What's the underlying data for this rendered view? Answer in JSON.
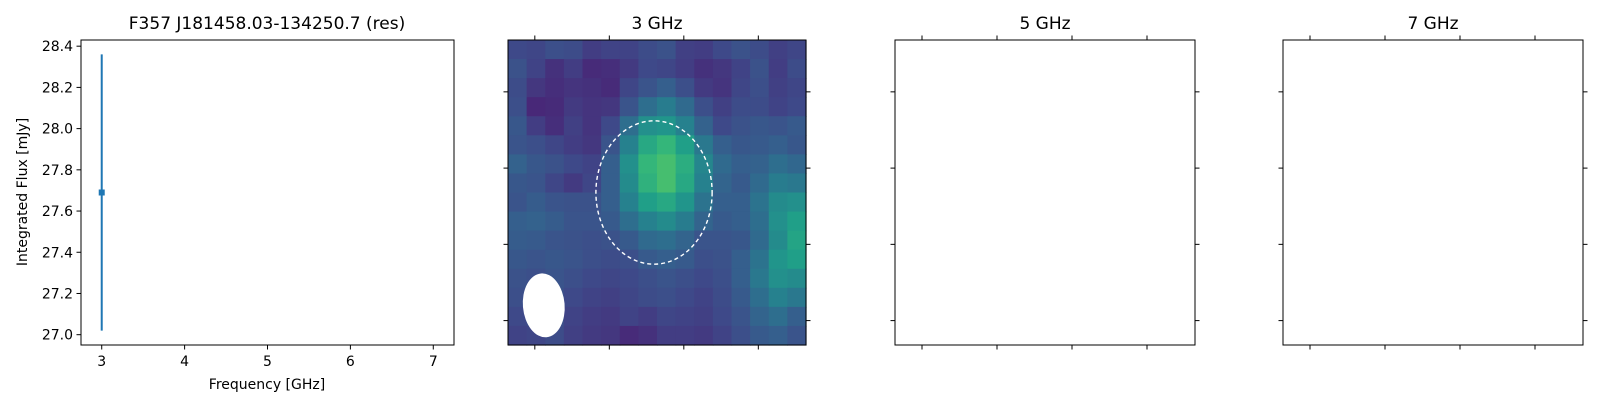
{
  "chart_data": [
    {
      "type": "scatter",
      "title": "F357 J181458.03-134250.7 (res)",
      "xlabel": "Frequency [GHz]",
      "ylabel": "Integrated Flux [mJy]",
      "xlim": [
        2.75,
        7.25
      ],
      "ylim": [
        26.95,
        28.43
      ],
      "x_ticks": [
        3,
        4,
        5,
        6,
        7
      ],
      "y_ticks": [
        27.0,
        27.2,
        27.4,
        27.6,
        27.8,
        28.0,
        28.2,
        28.4
      ],
      "series": [
        {
          "x": [
            3
          ],
          "y": [
            27.69
          ],
          "yerr": [
            [
              0.67
            ],
            [
              0.67
            ]
          ],
          "color": "#1f77b4"
        }
      ]
    },
    {
      "type": "heatmap",
      "title": "3 GHz",
      "colormap": "viridis",
      "rows": 16,
      "cols": 16,
      "values": [
        [
          0.22,
          0.21,
          0.24,
          0.23,
          0.18,
          0.2,
          0.2,
          0.23,
          0.25,
          0.19,
          0.18,
          0.22,
          0.25,
          0.23,
          0.19,
          0.21
        ],
        [
          0.25,
          0.2,
          0.14,
          0.18,
          0.12,
          0.13,
          0.17,
          0.22,
          0.21,
          0.18,
          0.14,
          0.16,
          0.2,
          0.25,
          0.18,
          0.23
        ],
        [
          0.23,
          0.16,
          0.13,
          0.15,
          0.14,
          0.12,
          0.21,
          0.26,
          0.3,
          0.24,
          0.17,
          0.15,
          0.21,
          0.24,
          0.19,
          0.21
        ],
        [
          0.24,
          0.11,
          0.12,
          0.17,
          0.15,
          0.16,
          0.26,
          0.36,
          0.42,
          0.34,
          0.24,
          0.19,
          0.23,
          0.23,
          0.2,
          0.22
        ],
        [
          0.27,
          0.18,
          0.13,
          0.19,
          0.15,
          0.22,
          0.36,
          0.5,
          0.52,
          0.44,
          0.31,
          0.22,
          0.25,
          0.27,
          0.26,
          0.28
        ],
        [
          0.26,
          0.24,
          0.21,
          0.18,
          0.16,
          0.26,
          0.44,
          0.6,
          0.66,
          0.56,
          0.4,
          0.3,
          0.27,
          0.28,
          0.3,
          0.27
        ],
        [
          0.31,
          0.27,
          0.25,
          0.22,
          0.2,
          0.3,
          0.5,
          0.66,
          0.7,
          0.62,
          0.46,
          0.34,
          0.3,
          0.31,
          0.36,
          0.33
        ],
        [
          0.27,
          0.26,
          0.21,
          0.17,
          0.21,
          0.3,
          0.48,
          0.64,
          0.7,
          0.6,
          0.44,
          0.32,
          0.28,
          0.34,
          0.42,
          0.4
        ],
        [
          0.26,
          0.29,
          0.26,
          0.25,
          0.25,
          0.3,
          0.44,
          0.56,
          0.6,
          0.52,
          0.38,
          0.3,
          0.3,
          0.38,
          0.48,
          0.5
        ],
        [
          0.3,
          0.31,
          0.29,
          0.26,
          0.26,
          0.28,
          0.36,
          0.44,
          0.48,
          0.42,
          0.32,
          0.28,
          0.3,
          0.36,
          0.5,
          0.56
        ],
        [
          0.29,
          0.28,
          0.26,
          0.25,
          0.24,
          0.25,
          0.28,
          0.34,
          0.36,
          0.32,
          0.26,
          0.26,
          0.27,
          0.34,
          0.48,
          0.58
        ],
        [
          0.27,
          0.26,
          0.27,
          0.26,
          0.24,
          0.23,
          0.24,
          0.28,
          0.3,
          0.28,
          0.24,
          0.25,
          0.3,
          0.38,
          0.52,
          0.56
        ],
        [
          0.25,
          0.24,
          0.26,
          0.24,
          0.22,
          0.21,
          0.22,
          0.24,
          0.26,
          0.24,
          0.22,
          0.24,
          0.3,
          0.4,
          0.5,
          0.48
        ],
        [
          0.24,
          0.23,
          0.25,
          0.22,
          0.2,
          0.19,
          0.21,
          0.23,
          0.24,
          0.22,
          0.2,
          0.23,
          0.28,
          0.36,
          0.44,
          0.4
        ],
        [
          0.22,
          0.23,
          0.24,
          0.2,
          0.18,
          0.17,
          0.2,
          0.18,
          0.21,
          0.2,
          0.19,
          0.22,
          0.26,
          0.32,
          0.36,
          0.3
        ],
        [
          0.2,
          0.21,
          0.23,
          0.19,
          0.17,
          0.16,
          0.12,
          0.14,
          0.18,
          0.18,
          0.17,
          0.2,
          0.24,
          0.28,
          0.3,
          0.26
        ]
      ],
      "source_ellipse": {
        "center": [
          0.49,
          0.5
        ],
        "width": 0.39,
        "height": 0.47,
        "style": "dashed",
        "color": "#ffffff"
      },
      "beam": {
        "center": [
          0.12,
          0.13
        ],
        "width": 0.14,
        "height": 0.21,
        "angle": 5,
        "color": "#ffffff"
      },
      "x_ticks": [
        0.09,
        0.34,
        0.59,
        0.84
      ],
      "y_ticks": [
        0.08,
        0.33,
        0.58,
        0.83
      ]
    },
    {
      "type": "heatmap",
      "title": "5 GHz",
      "values": [],
      "x_ticks": [
        0.09,
        0.34,
        0.59,
        0.84
      ],
      "y_ticks": [
        0.08,
        0.33,
        0.58,
        0.83
      ]
    },
    {
      "type": "heatmap",
      "title": "7 GHz",
      "values": [],
      "x_ticks": [
        0.09,
        0.34,
        0.59,
        0.84
      ],
      "y_ticks": [
        0.08,
        0.33,
        0.58,
        0.83
      ]
    }
  ]
}
